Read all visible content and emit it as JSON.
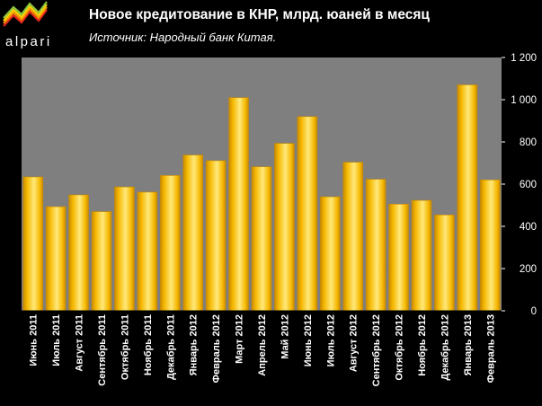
{
  "brand": {
    "logo_text": "alpari"
  },
  "header": {
    "title": "Новое кредитование в КНР, млрд. юаней в месяц",
    "source": "Источник: Народный банк Китая."
  },
  "colors": {
    "background": "#000000",
    "plot_area": "#7f7f7f",
    "bar_fill": "#f5b800",
    "bar_highlight": "#ffe97a",
    "bar_edge": "#c98a00"
  },
  "chart_data": {
    "type": "bar",
    "title": "Новое кредитование в КНР, млрд. юаней в месяц",
    "subtitle": "Источник: Народный банк Китая.",
    "categories": [
      "Июнь 2011",
      "Июль 2011",
      "Август 2011",
      "Сентябрь 2011",
      "Октябрь 2011",
      "Ноябрь 2011",
      "Декабрь 2011",
      "Январь 2012",
      "Февраль 2012",
      "Март 2012",
      "Апрель 2012",
      "Май 2012",
      "Июнь 2012",
      "Июль 2012",
      "Август 2012",
      "Сентябрь 2012",
      "Октябрь 2012",
      "Ноябрь 2012",
      "Декабрь 2012",
      "Январь 2013",
      "Февраль 2013"
    ],
    "values": [
      634,
      493,
      549,
      470,
      587,
      562,
      641,
      738,
      711,
      1010,
      682,
      793,
      920,
      540,
      704,
      623,
      505,
      523,
      454,
      1070,
      620
    ],
    "y_ticks": [
      "0",
      "200",
      "400",
      "600",
      "800",
      "1 000",
      "1 200"
    ],
    "ylim": [
      0,
      1200
    ],
    "y_axis_position": "right",
    "grid": false,
    "legend": "none"
  }
}
